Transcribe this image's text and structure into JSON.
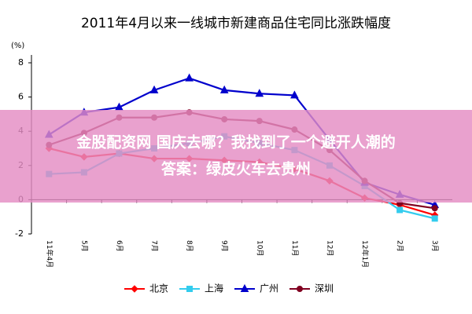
{
  "chart_data": {
    "type": "line",
    "title": "2011年4月以来一线城市新建商品住宅同比涨跌幅度",
    "y_label": "(%)",
    "categories": [
      "11年4月",
      "5月",
      "6月",
      "7月",
      "8月",
      "9月",
      "10月",
      "11月",
      "12月",
      "12年1月",
      "2月",
      "3月"
    ],
    "ylim": [
      -2,
      8
    ],
    "yticks": [
      -2,
      0,
      2,
      4,
      6,
      8
    ],
    "grid": false,
    "legend": "bottom",
    "series": [
      {
        "name": "北京",
        "color": "#ff0000",
        "marker": "diamond",
        "values": [
          3.0,
          2.5,
          2.7,
          2.4,
          2.4,
          2.3,
          2.2,
          1.8,
          1.1,
          0.1,
          -0.3,
          -0.9
        ]
      },
      {
        "name": "上海",
        "color": "#33ccee",
        "marker": "square",
        "values": [
          1.5,
          1.6,
          2.7,
          3.0,
          3.3,
          3.7,
          3.3,
          2.9,
          2.0,
          0.8,
          -0.6,
          -1.1
        ]
      },
      {
        "name": "广州",
        "color": "#0000cc",
        "marker": "triangle",
        "values": [
          3.8,
          5.1,
          5.4,
          6.4,
          7.1,
          6.4,
          6.2,
          6.1,
          3.5,
          1.0,
          0.3,
          -0.3
        ]
      },
      {
        "name": "深圳",
        "color": "#800020",
        "marker": "circle",
        "values": [
          3.2,
          3.9,
          4.8,
          4.8,
          5.1,
          4.7,
          4.6,
          4.1,
          2.9,
          1.1,
          -0.2,
          -0.5
        ]
      }
    ]
  },
  "banner": {
    "lines": [
      "金股配资网 国庆去哪？我找到了一个避开人潮的",
      "答案：绿皮火车去贵州"
    ]
  }
}
